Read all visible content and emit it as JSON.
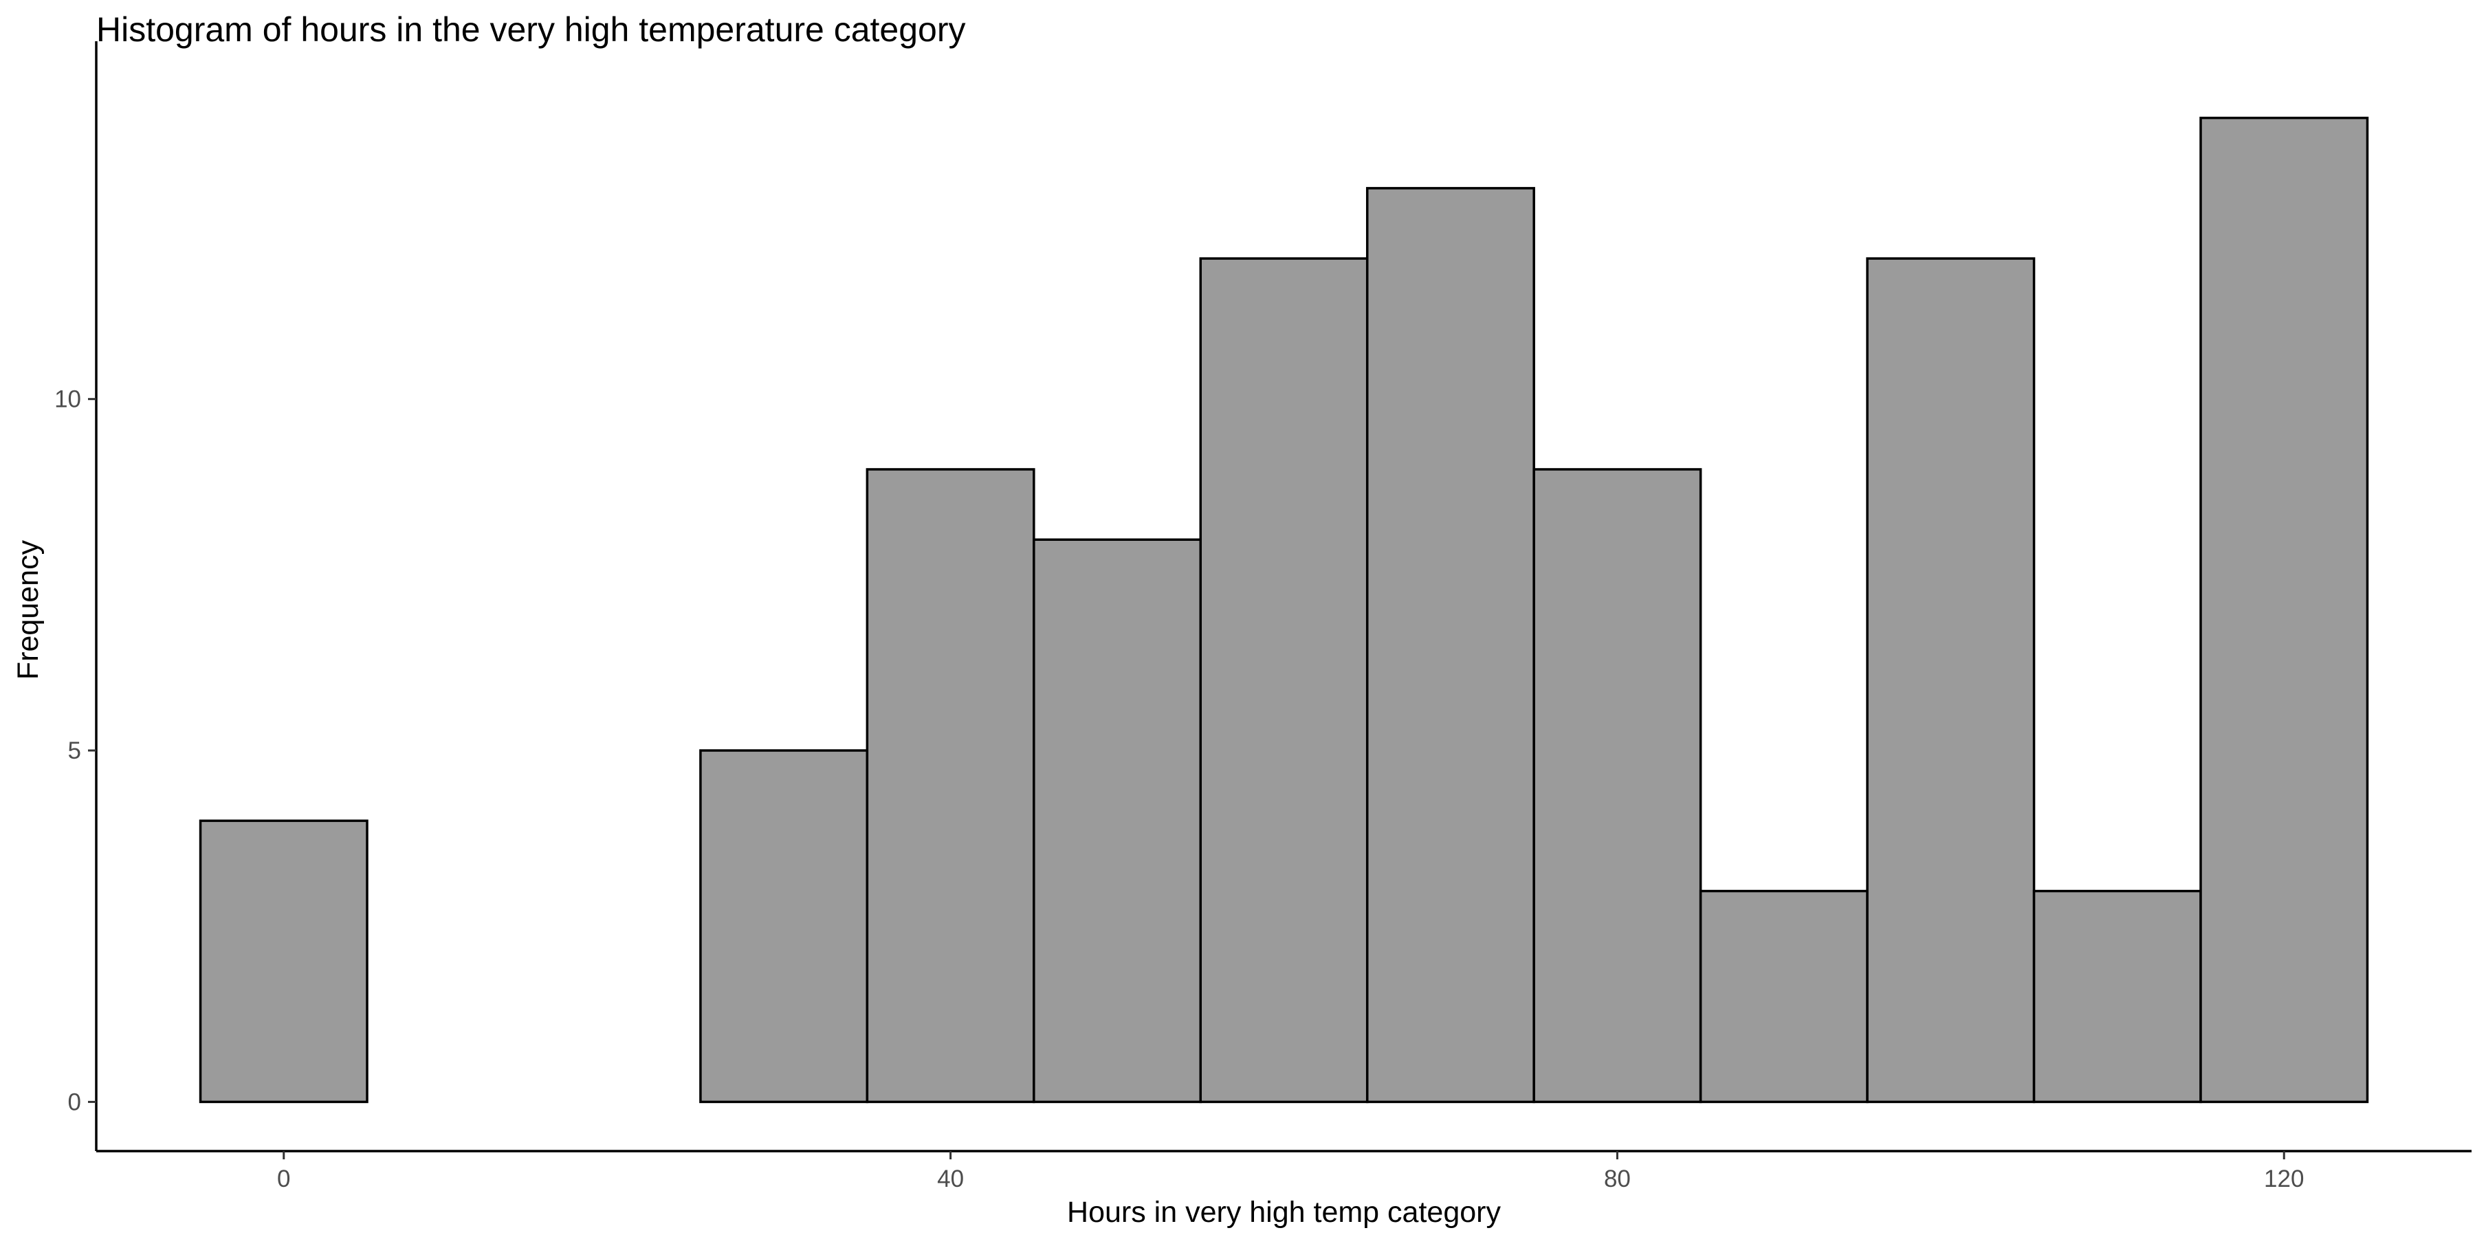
{
  "chart_data": {
    "type": "bar",
    "subtype": "histogram",
    "title": "Histogram of hours in the very high temperature category",
    "xlabel": "Hours in very high temp category",
    "ylabel": "Frequency",
    "binwidth": 10,
    "bins": [
      {
        "x0": -5,
        "x1": 5,
        "count": 4
      },
      {
        "x0": 5,
        "x1": 15,
        "count": 0
      },
      {
        "x0": 15,
        "x1": 25,
        "count": 0
      },
      {
        "x0": 25,
        "x1": 35,
        "count": 5
      },
      {
        "x0": 35,
        "x1": 45,
        "count": 9
      },
      {
        "x0": 45,
        "x1": 55,
        "count": 8
      },
      {
        "x0": 55,
        "x1": 65,
        "count": 12
      },
      {
        "x0": 65,
        "x1": 75,
        "count": 13
      },
      {
        "x0": 75,
        "x1": 85,
        "count": 9
      },
      {
        "x0": 85,
        "x1": 95,
        "count": 3
      },
      {
        "x0": 95,
        "x1": 105,
        "count": 12
      },
      {
        "x0": 105,
        "x1": 115,
        "count": 3
      },
      {
        "x0": 115,
        "x1": 125,
        "count": 14
      }
    ],
    "xticks": [
      0,
      40,
      80,
      120
    ],
    "yticks": [
      0,
      5,
      10
    ],
    "xlim": [
      -11.25,
      131.25
    ],
    "ylim": [
      -0.7,
      14.7
    ],
    "grid": false,
    "legend": "none",
    "colors": {
      "bar_fill": "#9b9b9b",
      "bar_stroke": "#000000",
      "axis": "#000000"
    }
  }
}
